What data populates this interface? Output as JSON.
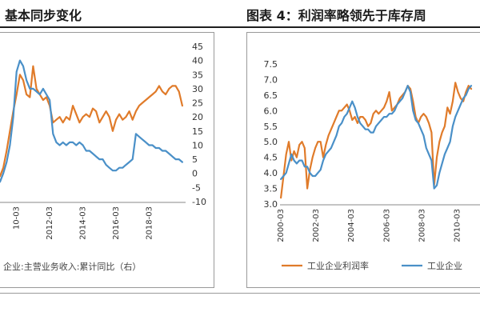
{
  "header": {
    "left_title": "基本同步变化",
    "right_title": "图表 4：利润率略领先于库存周"
  },
  "chart_data": [
    {
      "type": "line",
      "y_right_ticks": [
        "45",
        "40",
        "35",
        "30",
        "25",
        "20",
        "15",
        "10",
        "5",
        "0",
        "-5",
        "-10"
      ],
      "ylim": [
        -10,
        45
      ],
      "x_ticks": [
        "10-03",
        "2012-03",
        "2014-03",
        "2016-03",
        "2018-03"
      ],
      "legend_text": "企业:主营业务收入:累计同比（右）",
      "series": [
        {
          "color": "#e07b2a",
          "x": [
            2009.0,
            2009.2,
            2009.4,
            2009.6,
            2009.8,
            2010.0,
            2010.2,
            2010.4,
            2010.6,
            2010.8,
            2011.0,
            2011.2,
            2011.4,
            2011.6,
            2011.8,
            2012.0,
            2012.2,
            2012.4,
            2012.6,
            2012.8,
            2013.0,
            2013.2,
            2013.4,
            2013.6,
            2013.8,
            2014.0,
            2014.2,
            2014.4,
            2014.6,
            2014.8,
            2015.0,
            2015.2,
            2015.4,
            2015.6,
            2015.8,
            2016.0,
            2016.2,
            2016.4,
            2016.6,
            2016.8,
            2017.0,
            2017.2,
            2017.4,
            2017.6,
            2017.8,
            2018.0,
            2018.2,
            2018.4,
            2018.6,
            2018.8,
            2019.0,
            2019.2,
            2019.4,
            2019.6,
            2019.8,
            2020.0
          ],
          "y": [
            -1,
            2,
            8,
            15,
            22,
            28,
            35,
            33,
            28,
            27,
            38,
            30,
            28,
            26,
            27,
            24,
            18,
            19,
            20,
            18,
            20,
            19,
            24,
            21,
            18,
            20,
            21,
            20,
            23,
            22,
            18,
            20,
            22,
            20,
            15,
            19,
            21,
            19,
            20,
            22,
            19,
            22,
            24,
            25,
            26,
            27,
            28,
            29,
            31,
            29,
            28,
            30,
            31,
            31,
            29,
            24
          ]
        },
        {
          "color": "#4a90c8",
          "x": [
            2009.0,
            2009.2,
            2009.4,
            2009.6,
            2009.8,
            2010.0,
            2010.2,
            2010.4,
            2010.6,
            2010.8,
            2011.0,
            2011.2,
            2011.4,
            2011.6,
            2011.8,
            2012.0,
            2012.2,
            2012.4,
            2012.6,
            2012.8,
            2013.0,
            2013.2,
            2013.4,
            2013.6,
            2013.8,
            2014.0,
            2014.2,
            2014.4,
            2014.6,
            2014.8,
            2015.0,
            2015.2,
            2015.4,
            2015.6,
            2015.8,
            2016.0,
            2016.2,
            2016.4,
            2016.6,
            2016.8,
            2017.0,
            2017.2,
            2017.4,
            2017.6,
            2017.8,
            2018.0,
            2018.2,
            2018.4,
            2018.6,
            2018.8,
            2019.0,
            2019.2,
            2019.4,
            2019.6,
            2019.8,
            2020.0
          ],
          "y": [
            -3,
            0,
            4,
            10,
            20,
            36,
            40,
            38,
            33,
            30,
            30,
            29,
            28,
            30,
            28,
            26,
            14,
            11,
            10,
            11,
            10,
            11,
            11,
            10,
            11,
            10,
            8,
            8,
            7,
            6,
            5,
            5,
            3,
            2,
            1,
            1,
            2,
            2,
            3,
            4,
            5,
            14,
            13,
            12,
            11,
            10,
            10,
            9,
            9,
            8,
            8,
            7,
            6,
            5,
            5,
            4
          ]
        }
      ]
    },
    {
      "type": "line",
      "y_left_ticks": [
        "7.5",
        "7.0",
        "6.5",
        "6.0",
        "5.5",
        "5.0",
        "4.5",
        "4.0",
        "3.5",
        "3.0"
      ],
      "ylim": [
        3.0,
        7.5
      ],
      "x_ticks": [
        "2000-03",
        "2002-03",
        "2004-03",
        "2006-03",
        "2008-03",
        "2010-03"
      ],
      "series": [
        {
          "name": "工业企业利润率",
          "color": "#e07b2a",
          "x": [
            2000.0,
            2000.15,
            2000.3,
            2000.45,
            2000.6,
            2000.75,
            2000.9,
            2001.05,
            2001.2,
            2001.35,
            2001.5,
            2001.65,
            2001.8,
            2001.95,
            2002.1,
            2002.25,
            2002.4,
            2002.55,
            2002.7,
            2002.85,
            2003.0,
            2003.15,
            2003.3,
            2003.45,
            2003.6,
            2003.75,
            2003.9,
            2004.05,
            2004.2,
            2004.35,
            2004.5,
            2004.65,
            2004.8,
            2004.95,
            2005.1,
            2005.25,
            2005.4,
            2005.55,
            2005.7,
            2005.85,
            2006.0,
            2006.15,
            2006.3,
            2006.45,
            2006.6,
            2006.75,
            2006.9,
            2007.05,
            2007.2,
            2007.35,
            2007.5,
            2007.65,
            2007.8,
            2007.95,
            2008.1,
            2008.25,
            2008.4,
            2008.55,
            2008.7,
            2008.85,
            2009.0,
            2009.15,
            2009.3,
            2009.45,
            2009.6,
            2009.75,
            2009.9,
            2010.05,
            2010.2,
            2010.35,
            2010.5,
            2010.65,
            2010.8
          ],
          "y": [
            3.2,
            3.9,
            4.6,
            5.0,
            4.4,
            4.7,
            4.5,
            4.9,
            5.0,
            4.8,
            3.5,
            4.1,
            4.5,
            4.8,
            5.0,
            5.0,
            4.5,
            4.9,
            5.2,
            5.4,
            5.6,
            5.8,
            6.0,
            6.0,
            6.1,
            6.2,
            6.0,
            5.7,
            5.8,
            5.6,
            5.8,
            5.8,
            5.7,
            5.5,
            5.6,
            5.9,
            6.0,
            5.9,
            6.0,
            6.1,
            6.3,
            6.6,
            6.0,
            6.1,
            6.2,
            6.4,
            6.5,
            6.6,
            6.8,
            6.7,
            6.3,
            5.8,
            5.6,
            5.8,
            5.9,
            5.8,
            5.6,
            5.3,
            3.6,
            4.5,
            5.0,
            5.3,
            5.5,
            6.1,
            5.9,
            6.3,
            6.9,
            6.6,
            6.4,
            6.3,
            6.6,
            6.8,
            6.7
          ]
        },
        {
          "name": "工业企业",
          "color": "#4a90c8",
          "x": [
            2000.0,
            2000.15,
            2000.3,
            2000.45,
            2000.6,
            2000.75,
            2000.9,
            2001.05,
            2001.2,
            2001.35,
            2001.5,
            2001.65,
            2001.8,
            2001.95,
            2002.1,
            2002.25,
            2002.4,
            2002.55,
            2002.7,
            2002.85,
            2003.0,
            2003.15,
            2003.3,
            2003.45,
            2003.6,
            2003.75,
            2003.9,
            2004.05,
            2004.2,
            2004.35,
            2004.5,
            2004.65,
            2004.8,
            2004.95,
            2005.1,
            2005.25,
            2005.4,
            2005.55,
            2005.7,
            2005.85,
            2006.0,
            2006.15,
            2006.3,
            2006.45,
            2006.6,
            2006.75,
            2006.9,
            2007.05,
            2007.2,
            2007.35,
            2007.5,
            2007.65,
            2007.8,
            2007.95,
            2008.1,
            2008.25,
            2008.4,
            2008.55,
            2008.7,
            2008.85,
            2009.0,
            2009.15,
            2009.3,
            2009.45,
            2009.6,
            2009.75,
            2009.9,
            2010.05,
            2010.2,
            2010.35,
            2010.5,
            2010.65,
            2010.8
          ],
          "y": [
            3.8,
            3.9,
            4.0,
            4.3,
            4.6,
            4.4,
            4.3,
            4.4,
            4.4,
            4.2,
            4.2,
            4.0,
            3.9,
            3.9,
            4.0,
            4.1,
            4.4,
            4.6,
            4.7,
            4.8,
            5.0,
            5.2,
            5.5,
            5.6,
            5.8,
            5.9,
            6.1,
            6.3,
            6.1,
            5.8,
            5.6,
            5.5,
            5.4,
            5.4,
            5.3,
            5.3,
            5.5,
            5.6,
            5.7,
            5.8,
            5.8,
            5.9,
            5.9,
            6.0,
            6.2,
            6.3,
            6.4,
            6.6,
            6.8,
            6.6,
            6.0,
            5.7,
            5.6,
            5.4,
            5.2,
            4.8,
            4.6,
            4.4,
            3.5,
            3.6,
            4.0,
            4.3,
            4.6,
            4.8,
            5.0,
            5.5,
            5.8,
            6.0,
            6.2,
            6.4,
            6.5,
            6.7,
            6.8
          ]
        }
      ]
    }
  ]
}
